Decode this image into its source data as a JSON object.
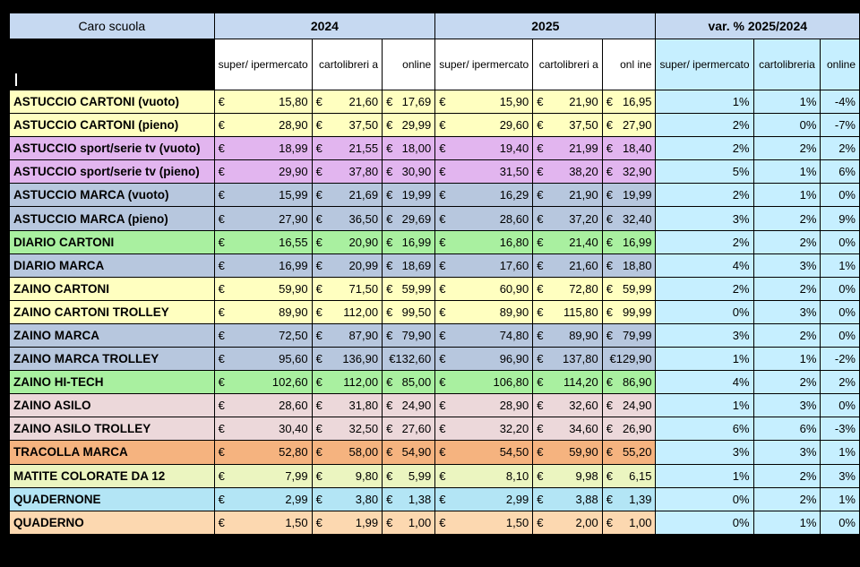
{
  "header": {
    "title": "Caro scuola",
    "group_2024": "2024",
    "group_2025": "2025",
    "group_var": "var. % 2025/2024",
    "sub": [
      "super/ ipermercato",
      "cartolibreri a",
      "online",
      "super/ ipermercato",
      "cartolibreri a",
      "onl ine",
      "super/ ipermercato",
      "cartolibreria",
      "online"
    ]
  },
  "colors": {
    "yellow": "#ffffc0",
    "violet": "#e2b5ef",
    "slate": "#b7c7de",
    "green": "#a9f0a0",
    "pink": "#ecd8da",
    "orange": "#f5b37f",
    "lightgreen": "#ebf5c0",
    "cyan": "#b3e5f5",
    "peach": "#fcd8b0",
    "pct": "#c6efff"
  },
  "rows": [
    {
      "item": "ASTUCCIO CARTONI (vuoto)",
      "color": "yellow",
      "p2024": [
        "€ 15,80",
        "€ 21,60",
        "€ 17,69"
      ],
      "p2025": [
        "€ 15,90",
        "€ 21,90",
        "€ 16,95"
      ],
      "var": [
        "1%",
        "1%",
        "-4%"
      ]
    },
    {
      "item": "ASTUCCIO CARTONI (pieno)",
      "color": "yellow",
      "p2024": [
        "€ 28,90",
        "€ 37,50",
        "€ 29,99"
      ],
      "p2025": [
        "€ 29,60",
        "€ 37,50",
        "€ 27,90"
      ],
      "var": [
        "2%",
        "0%",
        "-7%"
      ]
    },
    {
      "item": "ASTUCCIO sport/serie tv (vuoto)",
      "color": "violet",
      "p2024": [
        "€ 18,99",
        "€ 21,55",
        "€ 18,00"
      ],
      "p2025": [
        "€ 19,40",
        "€ 21,99",
        "€ 18,40"
      ],
      "var": [
        "2%",
        "2%",
        "2%"
      ]
    },
    {
      "item": "ASTUCCIO sport/serie tv (pieno)",
      "color": "violet",
      "p2024": [
        "€ 29,90",
        "€ 37,80",
        "€ 30,90"
      ],
      "p2025": [
        "€ 31,50",
        "€ 38,20",
        "€ 32,90"
      ],
      "var": [
        "5%",
        "1%",
        "6%"
      ]
    },
    {
      "item": "ASTUCCIO MARCA (vuoto)",
      "color": "slate",
      "p2024": [
        "€ 15,99",
        "€ 21,69",
        "€ 19,99"
      ],
      "p2025": [
        "€ 16,29",
        "€ 21,90",
        "€ 19,99"
      ],
      "var": [
        "2%",
        "1%",
        "0%"
      ]
    },
    {
      "item": "ASTUCCIO MARCA (pieno)",
      "color": "slate",
      "p2024": [
        "€ 27,90",
        "€ 36,50",
        "€ 29,69"
      ],
      "p2025": [
        "€ 28,60",
        "€ 37,20",
        "€ 32,40"
      ],
      "var": [
        "3%",
        "2%",
        "9%"
      ]
    },
    {
      "item": "DIARIO CARTONI",
      "color": "green",
      "p2024": [
        "€ 16,55",
        "€ 20,90",
        "€ 16,99"
      ],
      "p2025": [
        "€ 16,80",
        "€ 21,40",
        "€ 16,99"
      ],
      "var": [
        "2%",
        "2%",
        "0%"
      ]
    },
    {
      "item": "DIARIO MARCA",
      "color": "slate",
      "p2024": [
        "€ 16,99",
        "€ 20,99",
        "€ 18,69"
      ],
      "p2025": [
        "€ 17,60",
        "€ 21,60",
        "€ 18,80"
      ],
      "var": [
        "4%",
        "3%",
        "1%"
      ]
    },
    {
      "item": "ZAINO CARTONI",
      "color": "yellow",
      "p2024": [
        "€ 59,90",
        "€ 71,50",
        "€ 59,99"
      ],
      "p2025": [
        "€ 60,90",
        "€ 72,80",
        "€ 59,99"
      ],
      "var": [
        "2%",
        "2%",
        "0%"
      ]
    },
    {
      "item": "ZAINO CARTONI TROLLEY",
      "color": "yellow",
      "p2024": [
        "€ 89,90",
        "€ 112,00",
        "€ 99,50"
      ],
      "p2025": [
        "€ 89,90",
        "€ 115,80",
        "€ 99,99"
      ],
      "var": [
        "0%",
        "3%",
        "0%"
      ]
    },
    {
      "item": "ZAINO MARCA",
      "color": "slate",
      "p2024": [
        "€ 72,50",
        "€ 87,90",
        "€ 79,90"
      ],
      "p2025": [
        "€ 74,80",
        "€ 89,90",
        "€ 79,99"
      ],
      "var": [
        "3%",
        "2%",
        "0%"
      ]
    },
    {
      "item": "ZAINO MARCA TROLLEY",
      "color": "slate",
      "p2024": [
        "€ 95,60",
        "€ 136,90",
        "€132,60"
      ],
      "p2025": [
        "€ 96,90",
        "€ 137,80",
        "€129,90"
      ],
      "var": [
        "1%",
        "1%",
        "-2%"
      ]
    },
    {
      "item": "ZAINO HI-TECH",
      "color": "green",
      "p2024": [
        "€ 102,60",
        "€ 112,00",
        "€ 85,00"
      ],
      "p2025": [
        "€ 106,80",
        "€ 114,20",
        "€ 86,90"
      ],
      "var": [
        "4%",
        "2%",
        "2%"
      ]
    },
    {
      "item": "ZAINO ASILO",
      "color": "pink",
      "p2024": [
        "€ 28,60",
        "€ 31,80",
        "€ 24,90"
      ],
      "p2025": [
        "€ 28,90",
        "€ 32,60",
        "€ 24,90"
      ],
      "var": [
        "1%",
        "3%",
        "0%"
      ]
    },
    {
      "item": "ZAINO ASILO TROLLEY",
      "color": "pink",
      "p2024": [
        "€ 30,40",
        "€ 32,50",
        "€ 27,60"
      ],
      "p2025": [
        "€ 32,20",
        "€ 34,60",
        "€ 26,90"
      ],
      "var": [
        "6%",
        "6%",
        "-3%"
      ]
    },
    {
      "item": "TRACOLLA MARCA",
      "color": "orange",
      "p2024": [
        "€ 52,80",
        "€ 58,00",
        "€ 54,90"
      ],
      "p2025": [
        "€ 54,50",
        "€ 59,90",
        "€ 55,20"
      ],
      "var": [
        "3%",
        "3%",
        "1%"
      ]
    },
    {
      "item": "MATITE COLORATE DA 12",
      "color": "lightgreen",
      "p2024": [
        "€ 7,99",
        "€ 9,80",
        "€ 5,99"
      ],
      "p2025": [
        "€ 8,10",
        "€ 9,98",
        "€ 6,15"
      ],
      "var": [
        "1%",
        "2%",
        "3%"
      ]
    },
    {
      "item": "QUADERNONE",
      "color": "cyan",
      "p2024": [
        "€ 2,99",
        "€ 3,80",
        "€ 1,38"
      ],
      "p2025": [
        "€ 2,99",
        "€ 3,88",
        "€ 1,39"
      ],
      "var": [
        "0%",
        "2%",
        "1%"
      ]
    },
    {
      "item": "QUADERNO",
      "color": "peach",
      "p2024": [
        "€ 1,50",
        "€ 1,99",
        "€ 1,00"
      ],
      "p2025": [
        "€ 1,50",
        "€ 2,00",
        "€ 1,00"
      ],
      "var": [
        "0%",
        "1%",
        "0%"
      ]
    }
  ]
}
